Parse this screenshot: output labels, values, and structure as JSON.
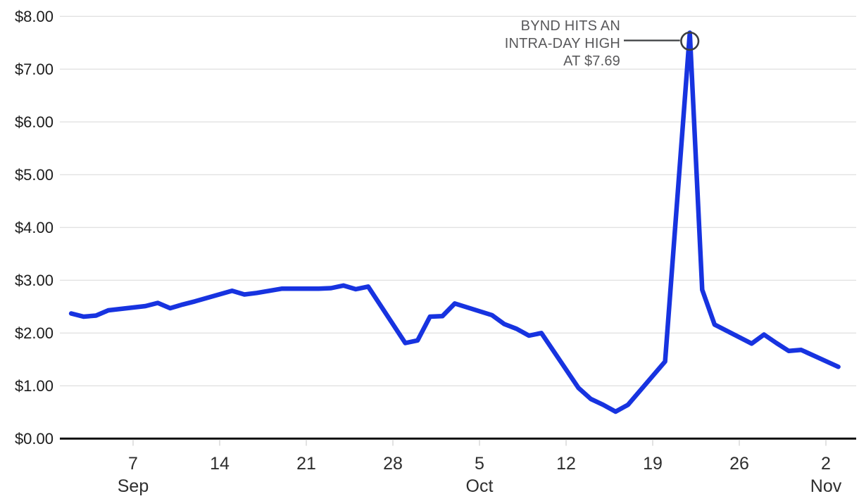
{
  "chart_data": {
    "type": "line",
    "grid": "horizontal-only",
    "ylim": [
      0,
      8
    ],
    "y_tick_format": "$0.00",
    "y_ticks": [
      {
        "value": 8,
        "label": "$8.00"
      },
      {
        "value": 7,
        "label": "$7.00"
      },
      {
        "value": 6,
        "label": "$6.00"
      },
      {
        "value": 5,
        "label": "$5.00"
      },
      {
        "value": 4,
        "label": "$4.00"
      },
      {
        "value": 3,
        "label": "$3.00"
      },
      {
        "value": 2,
        "label": "$2.00"
      },
      {
        "value": 1,
        "label": "$1.00"
      },
      {
        "value": 0,
        "label": "$0.00"
      }
    ],
    "x_ticks": [
      {
        "date": "Sep 7",
        "label": "7",
        "sub_label": "Sep"
      },
      {
        "date": "Sep 14",
        "label": "14"
      },
      {
        "date": "Sep 21",
        "label": "21"
      },
      {
        "date": "Sep 28",
        "label": "28"
      },
      {
        "date": "Oct 5",
        "label": "5",
        "sub_label": "Oct"
      },
      {
        "date": "Oct 12",
        "label": "12"
      },
      {
        "date": "Oct 19",
        "label": "19"
      },
      {
        "date": "Oct 26",
        "label": "26"
      },
      {
        "date": "Nov 2",
        "label": "2",
        "sub_label": "Nov"
      }
    ],
    "series": [
      {
        "name": "BYND",
        "color": "#1733e0",
        "points": [
          {
            "date": "Sep 2",
            "value": 2.37
          },
          {
            "date": "Sep 3",
            "value": 2.31
          },
          {
            "date": "Sep 4",
            "value": 2.33
          },
          {
            "date": "Sep 5",
            "value": 2.43
          },
          {
            "date": "Sep 8",
            "value": 2.51
          },
          {
            "date": "Sep 9",
            "value": 2.57
          },
          {
            "date": "Sep 10",
            "value": 2.47
          },
          {
            "date": "Sep 11",
            "value": 2.54
          },
          {
            "date": "Sep 12",
            "value": 2.6
          },
          {
            "date": "Sep 15",
            "value": 2.8
          },
          {
            "date": "Sep 16",
            "value": 2.73
          },
          {
            "date": "Sep 17",
            "value": 2.76
          },
          {
            "date": "Sep 18",
            "value": 2.8
          },
          {
            "date": "Sep 19",
            "value": 2.84
          },
          {
            "date": "Sep 22",
            "value": 2.84
          },
          {
            "date": "Sep 23",
            "value": 2.85
          },
          {
            "date": "Sep 24",
            "value": 2.9
          },
          {
            "date": "Sep 25",
            "value": 2.83
          },
          {
            "date": "Sep 26",
            "value": 2.88
          },
          {
            "date": "Sep 29",
            "value": 1.81
          },
          {
            "date": "Sep 30",
            "value": 1.86
          },
          {
            "date": "Oct 1",
            "value": 2.31
          },
          {
            "date": "Oct 2",
            "value": 2.32
          },
          {
            "date": "Oct 3",
            "value": 2.56
          },
          {
            "date": "Oct 6",
            "value": 2.34
          },
          {
            "date": "Oct 7",
            "value": 2.17
          },
          {
            "date": "Oct 8",
            "value": 2.08
          },
          {
            "date": "Oct 9",
            "value": 1.95
          },
          {
            "date": "Oct 10",
            "value": 2.0
          },
          {
            "date": "Oct 13",
            "value": 0.96
          },
          {
            "date": "Oct 14",
            "value": 0.75
          },
          {
            "date": "Oct 15",
            "value": 0.64
          },
          {
            "date": "Oct 16",
            "value": 0.51
          },
          {
            "date": "Oct 17",
            "value": 0.64
          },
          {
            "date": "Oct 20",
            "value": 1.46
          },
          {
            "date": "Oct 21",
            "value": 4.57
          },
          {
            "date": "Oct 22",
            "value": 7.69
          },
          {
            "date": "Oct 23",
            "value": 2.82
          },
          {
            "date": "Oct 24",
            "value": 2.16
          },
          {
            "date": "Oct 27",
            "value": 1.8
          },
          {
            "date": "Oct 28",
            "value": 1.97
          },
          {
            "date": "Oct 29",
            "value": 1.81
          },
          {
            "date": "Oct 30",
            "value": 1.66
          },
          {
            "date": "Oct 31",
            "value": 1.68
          },
          {
            "date": "Nov 3",
            "value": 1.36
          }
        ]
      }
    ],
    "annotation": {
      "lines": [
        "BYND HITS AN",
        "INTRA-DAY HIGH",
        "AT $7.69"
      ],
      "target_date": "Oct 22",
      "value": 7.69
    }
  },
  "colors": {
    "line_blue": "#1733e0",
    "gridline": "#e2e2e2",
    "axis": "#000000",
    "tick_mark": "#d8d8d8",
    "y_label": "#1c1c1c",
    "x_label": "#2e2e2e",
    "annotation_text": "#59595b",
    "annotation_leader": "#3c3e40"
  }
}
